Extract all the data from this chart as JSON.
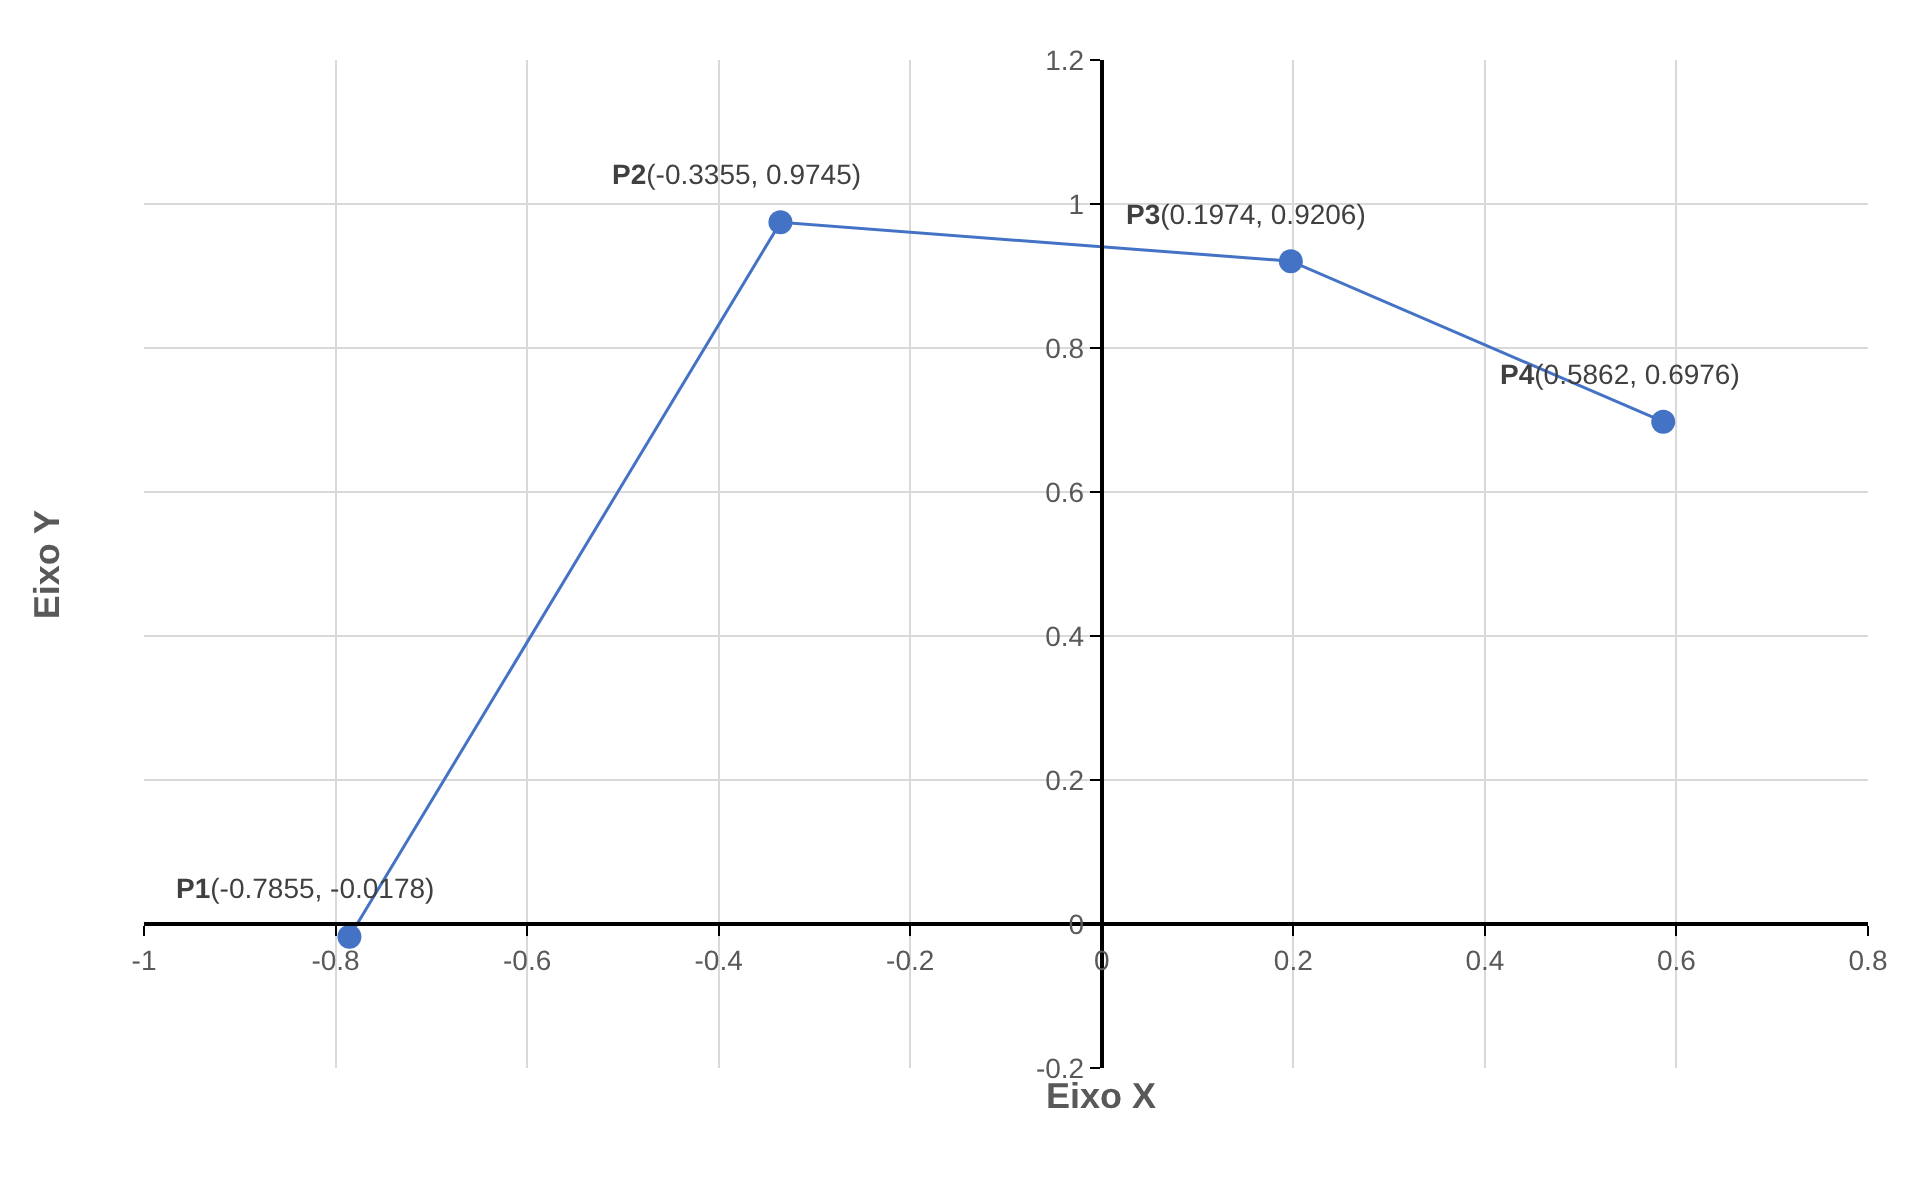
{
  "chart_data": {
    "type": "line",
    "xlabel": "Eixo X",
    "ylabel": "Eixo Y",
    "x": [
      -0.7855,
      -0.3355,
      0.1974,
      0.5862
    ],
    "series": [
      {
        "color": "#4472c4",
        "values": [
          -0.0178,
          0.9745,
          0.9206,
          0.6976
        ]
      }
    ],
    "annotations": [
      {
        "text": "P1(-0.7855, -0.0178)",
        "x": -0.7855,
        "y": -0.0178
      },
      {
        "text": "P2(-0.3355, 0.9745)",
        "x": -0.3355,
        "y": 0.9745
      },
      {
        "text": "P3(0.1974, 0.9206)",
        "x": 0.1974,
        "y": 0.9206
      },
      {
        "text": "P4(0.5862, 0.6976)",
        "x": 0.5862,
        "y": 0.6976
      }
    ],
    "xlim": [
      -1,
      0.8
    ],
    "xticks": [
      -1,
      -0.8,
      -0.6,
      -0.4,
      -0.2,
      0,
      0.2,
      0.4,
      0.6,
      0.8
    ],
    "ylim": [
      -0.2,
      1.2
    ],
    "yticks": [
      -0.2,
      0,
      0.2,
      0.4,
      0.6,
      0.8,
      1,
      1.2
    ],
    "grid": true,
    "marker": "circle",
    "line_style": "solid"
  }
}
